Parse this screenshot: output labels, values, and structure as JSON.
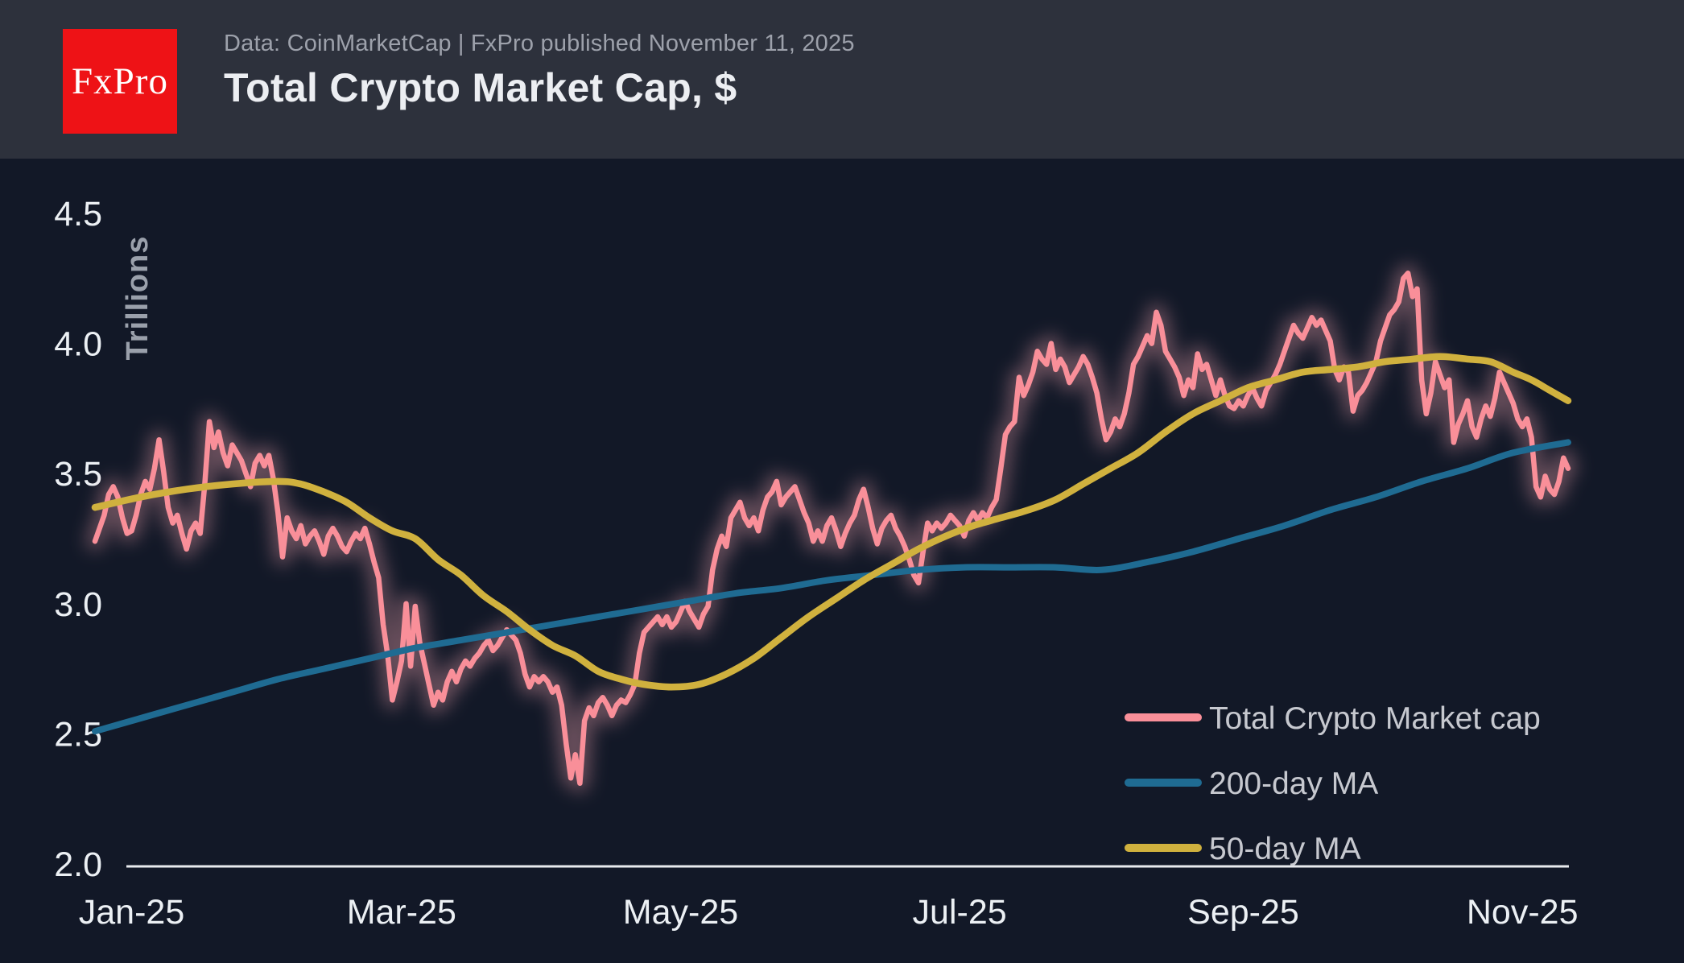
{
  "header": {
    "logo_text": "FxPro",
    "subtitle": "Data: CoinMarketCap | FxPro published November 11, 2025",
    "title": "Total Crypto Market Cap, $"
  },
  "colors": {
    "header_bg": "#2d313c",
    "chart_bg": "#121827",
    "logo_red": "#ee1216",
    "axis_text": "#ecf0f4",
    "muted_text": "#9da1ab",
    "legend_text": "#c6c8cf",
    "axis_line": "#e8eaee",
    "market_cap_pink": "#f98f99",
    "ma200_blue": "#1f6b92",
    "ma50_yellow": "#d0b13e"
  },
  "chart_data": {
    "type": "line",
    "title": "Total Crypto Market Cap, $",
    "ylabel": "Trillions",
    "unit": "$ Trillions",
    "ylim": [
      2.0,
      4.5
    ],
    "grid": false,
    "legend_position": "bottom-right",
    "y_ticks": [
      {
        "label": "2.0",
        "value": 2.0
      },
      {
        "label": "2.5",
        "value": 2.5
      },
      {
        "label": "3.0",
        "value": 3.0
      },
      {
        "label": "3.5",
        "value": 3.5
      },
      {
        "label": "4.0",
        "value": 4.0
      },
      {
        "label": "4.5",
        "value": 4.5
      }
    ],
    "x_axis_span_days": 322,
    "x_ticks": [
      {
        "label": "Jan-25",
        "day": 8
      },
      {
        "label": "Mar-25",
        "day": 67
      },
      {
        "label": "May-25",
        "day": 128
      },
      {
        "label": "Jul-25",
        "day": 189
      },
      {
        "label": "Sep-25",
        "day": 251
      },
      {
        "label": "Nov-25",
        "day": 312
      }
    ],
    "series": [
      {
        "name": "Total Crypto Market cap",
        "color": "#f98f99",
        "glow": true,
        "day_start": 0,
        "day_step": 1,
        "values": [
          3.24,
          3.29,
          3.34,
          3.42,
          3.45,
          3.41,
          3.33,
          3.27,
          3.28,
          3.34,
          3.42,
          3.47,
          3.44,
          3.52,
          3.63,
          3.51,
          3.37,
          3.31,
          3.34,
          3.27,
          3.21,
          3.28,
          3.31,
          3.27,
          3.46,
          3.7,
          3.6,
          3.66,
          3.58,
          3.53,
          3.61,
          3.58,
          3.55,
          3.5,
          3.45,
          3.54,
          3.57,
          3.53,
          3.57,
          3.48,
          3.35,
          3.18,
          3.33,
          3.28,
          3.25,
          3.3,
          3.23,
          3.26,
          3.28,
          3.24,
          3.19,
          3.26,
          3.29,
          3.26,
          3.22,
          3.2,
          3.24,
          3.27,
          3.25,
          3.29,
          3.23,
          3.16,
          3.1,
          2.92,
          2.8,
          2.63,
          2.7,
          2.78,
          3.0,
          2.76,
          2.99,
          2.85,
          2.77,
          2.69,
          2.61,
          2.66,
          2.63,
          2.7,
          2.74,
          2.7,
          2.75,
          2.78,
          2.76,
          2.79,
          2.81,
          2.84,
          2.86,
          2.82,
          2.84,
          2.87,
          2.9,
          2.88,
          2.86,
          2.81,
          2.73,
          2.68,
          2.72,
          2.7,
          2.72,
          2.7,
          2.66,
          2.68,
          2.61,
          2.46,
          2.33,
          2.42,
          2.31,
          2.55,
          2.6,
          2.57,
          2.62,
          2.64,
          2.61,
          2.57,
          2.61,
          2.63,
          2.62,
          2.65,
          2.69,
          2.81,
          2.89,
          2.91,
          2.93,
          2.95,
          2.92,
          2.95,
          2.91,
          2.93,
          2.97,
          3.01,
          2.97,
          2.94,
          2.91,
          2.96,
          2.99,
          3.13,
          3.21,
          3.26,
          3.22,
          3.33,
          3.36,
          3.39,
          3.33,
          3.3,
          3.33,
          3.28,
          3.36,
          3.41,
          3.43,
          3.47,
          3.38,
          3.41,
          3.43,
          3.45,
          3.4,
          3.35,
          3.31,
          3.24,
          3.28,
          3.24,
          3.3,
          3.33,
          3.28,
          3.22,
          3.27,
          3.31,
          3.34,
          3.4,
          3.44,
          3.37,
          3.29,
          3.23,
          3.29,
          3.32,
          3.34,
          3.29,
          3.26,
          3.22,
          3.17,
          3.11,
          3.08,
          3.2,
          3.31,
          3.28,
          3.31,
          3.29,
          3.31,
          3.34,
          3.32,
          3.3,
          3.26,
          3.32,
          3.35,
          3.32,
          3.35,
          3.33,
          3.37,
          3.4,
          3.52,
          3.65,
          3.68,
          3.7,
          3.87,
          3.8,
          3.84,
          3.89,
          3.97,
          3.94,
          3.92,
          4.0,
          3.9,
          3.94,
          3.91,
          3.85,
          3.88,
          3.91,
          3.95,
          3.92,
          3.87,
          3.81,
          3.71,
          3.63,
          3.66,
          3.71,
          3.68,
          3.73,
          3.81,
          3.92,
          3.95,
          3.99,
          4.03,
          4.0,
          4.12,
          4.07,
          3.97,
          3.94,
          3.91,
          3.87,
          3.8,
          3.86,
          3.83,
          3.96,
          3.9,
          3.92,
          3.86,
          3.8,
          3.86,
          3.8,
          3.76,
          3.75,
          3.78,
          3.76,
          3.8,
          3.83,
          3.79,
          3.76,
          3.82,
          3.85,
          3.88,
          3.92,
          3.97,
          4.02,
          4.07,
          4.04,
          4.02,
          4.06,
          4.1,
          4.07,
          4.09,
          4.05,
          4.01,
          3.9,
          3.86,
          3.91,
          3.89,
          3.74,
          3.8,
          3.82,
          3.85,
          3.89,
          3.93,
          4.01,
          4.06,
          4.11,
          4.13,
          4.16,
          4.25,
          4.27,
          4.18,
          4.21,
          3.86,
          3.73,
          3.81,
          3.93,
          3.88,
          3.83,
          3.86,
          3.62,
          3.69,
          3.73,
          3.78,
          3.68,
          3.64,
          3.71,
          3.76,
          3.72,
          3.79,
          3.89,
          3.85,
          3.81,
          3.77,
          3.71,
          3.68,
          3.71,
          3.64,
          3.45,
          3.41,
          3.49,
          3.44,
          3.42,
          3.47,
          3.56,
          3.52
        ]
      },
      {
        "name": "200-day MA",
        "color": "#1f6b92",
        "glow": false,
        "days": [
          0,
          10,
          20,
          30,
          40,
          50,
          60,
          70,
          80,
          90,
          100,
          110,
          120,
          130,
          140,
          150,
          160,
          170,
          180,
          190,
          200,
          210,
          220,
          230,
          240,
          250,
          260,
          270,
          280,
          290,
          300,
          310,
          322
        ],
        "values": [
          2.51,
          2.56,
          2.61,
          2.66,
          2.71,
          2.75,
          2.79,
          2.83,
          2.86,
          2.89,
          2.92,
          2.95,
          2.98,
          3.01,
          3.04,
          3.06,
          3.09,
          3.11,
          3.13,
          3.14,
          3.14,
          3.14,
          3.13,
          3.16,
          3.2,
          3.25,
          3.3,
          3.36,
          3.41,
          3.47,
          3.52,
          3.58,
          3.62
        ]
      },
      {
        "name": "50-day MA",
        "color": "#d0b13e",
        "glow": false,
        "days": [
          0,
          10,
          20,
          30,
          40,
          45,
          50,
          55,
          60,
          65,
          70,
          75,
          80,
          85,
          90,
          95,
          100,
          105,
          110,
          115,
          120,
          126,
          132,
          138,
          144,
          150,
          156,
          162,
          168,
          174,
          180,
          186,
          192,
          198,
          204,
          210,
          216,
          222,
          228,
          234,
          240,
          246,
          252,
          258,
          264,
          270,
          276,
          282,
          288,
          294,
          300,
          305,
          310,
          314,
          318,
          322
        ],
        "values": [
          3.37,
          3.41,
          3.44,
          3.46,
          3.47,
          3.46,
          3.43,
          3.39,
          3.33,
          3.28,
          3.25,
          3.17,
          3.11,
          3.03,
          2.97,
          2.9,
          2.84,
          2.8,
          2.74,
          2.71,
          2.69,
          2.68,
          2.69,
          2.73,
          2.79,
          2.87,
          2.95,
          3.02,
          3.09,
          3.15,
          3.21,
          3.26,
          3.3,
          3.33,
          3.36,
          3.4,
          3.46,
          3.52,
          3.58,
          3.66,
          3.73,
          3.78,
          3.83,
          3.86,
          3.89,
          3.9,
          3.91,
          3.93,
          3.94,
          3.95,
          3.94,
          3.93,
          3.89,
          3.86,
          3.82,
          3.78
        ]
      }
    ]
  }
}
